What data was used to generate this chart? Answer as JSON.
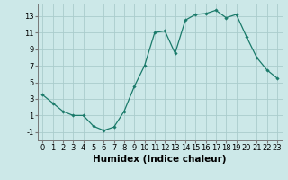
{
  "x": [
    0,
    1,
    2,
    3,
    4,
    5,
    6,
    7,
    8,
    9,
    10,
    11,
    12,
    13,
    14,
    15,
    16,
    17,
    18,
    19,
    20,
    21,
    22,
    23
  ],
  "y": [
    3.5,
    2.5,
    1.5,
    1.0,
    1.0,
    -0.3,
    -0.8,
    -0.4,
    1.5,
    4.5,
    7.0,
    11.0,
    11.2,
    8.5,
    12.5,
    13.2,
    13.3,
    13.7,
    12.8,
    13.2,
    10.5,
    8.0,
    6.5,
    5.5
  ],
  "line_color": "#1a7a6a",
  "marker": "D",
  "marker_size": 1.8,
  "bg_color": "#cce8e8",
  "grid_color": "#aacccc",
  "xlabel": "Humidex (Indice chaleur)",
  "ylabel": "",
  "xlim": [
    -0.5,
    23.5
  ],
  "ylim": [
    -2.0,
    14.5
  ],
  "yticks": [
    -1,
    1,
    3,
    5,
    7,
    9,
    11,
    13
  ],
  "xticks": [
    0,
    1,
    2,
    3,
    4,
    5,
    6,
    7,
    8,
    9,
    10,
    11,
    12,
    13,
    14,
    15,
    16,
    17,
    18,
    19,
    20,
    21,
    22,
    23
  ],
  "xtick_labels": [
    "0",
    "1",
    "2",
    "3",
    "4",
    "5",
    "6",
    "7",
    "8",
    "9",
    "10",
    "11",
    "12",
    "13",
    "14",
    "15",
    "16",
    "17",
    "18",
    "19",
    "20",
    "21",
    "22",
    "23"
  ],
  "xlabel_fontsize": 7.5,
  "tick_fontsize": 6.0,
  "linewidth": 0.9
}
